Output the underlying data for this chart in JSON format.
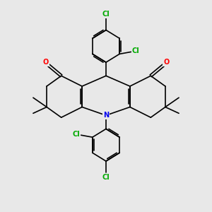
{
  "bg_color": "#e8e8e8",
  "atom_colors": {
    "N": "#0000ee",
    "O": "#ff0000",
    "Cl": "#00aa00"
  },
  "bond_color": "#000000",
  "bond_width": 1.2,
  "figsize": [
    3.0,
    3.0
  ],
  "dpi": 100
}
